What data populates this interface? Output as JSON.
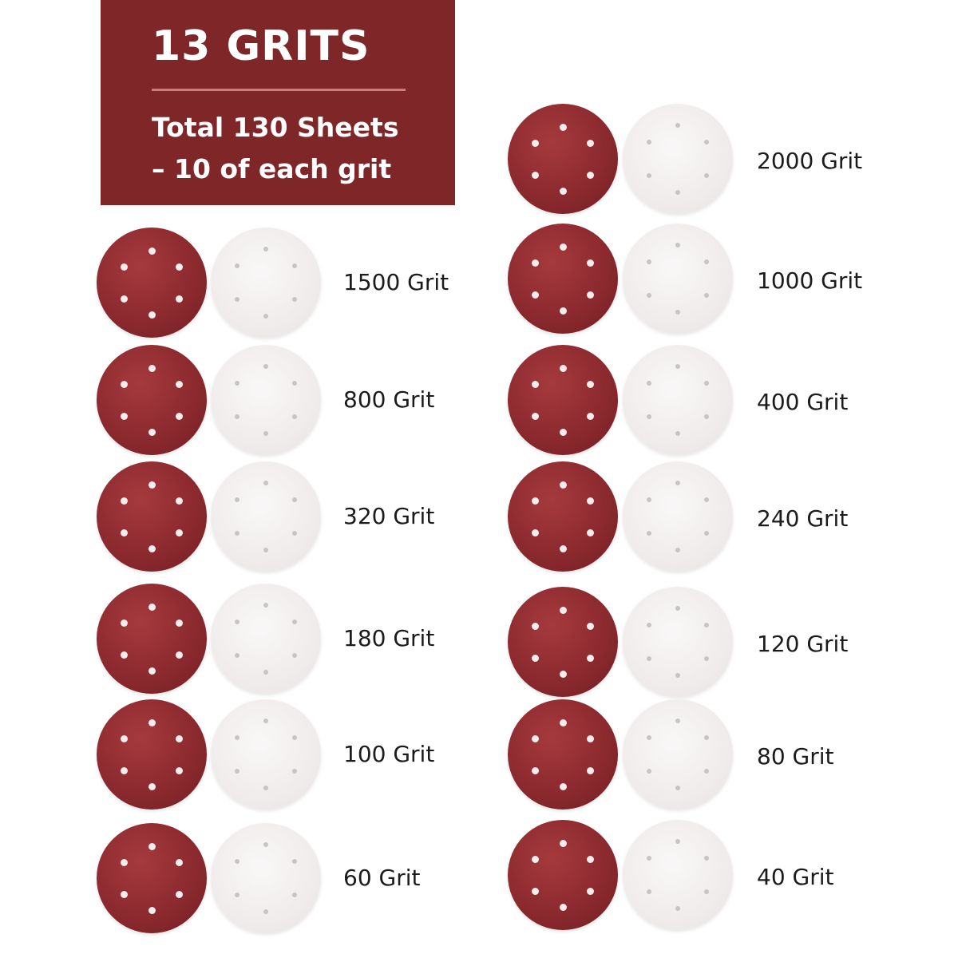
{
  "banner": {
    "title": "13 GRITS",
    "line1": "Total 130 Sheets",
    "line2": "– 10 of each grit"
  },
  "colors": {
    "banner": "#7e2628",
    "disc_red": "#8c2a2f",
    "disc_white": "#efeaea"
  },
  "grits": {
    "left": [
      "1500 Grit",
      "800 Grit",
      "320 Grit",
      "180 Grit",
      "100 Grit",
      "60 Grit"
    ],
    "right": [
      "2000 Grit",
      "1000 Grit",
      "400 Grit",
      "240 Grit",
      "120 Grit",
      "80 Grit",
      "40 Grit"
    ]
  }
}
